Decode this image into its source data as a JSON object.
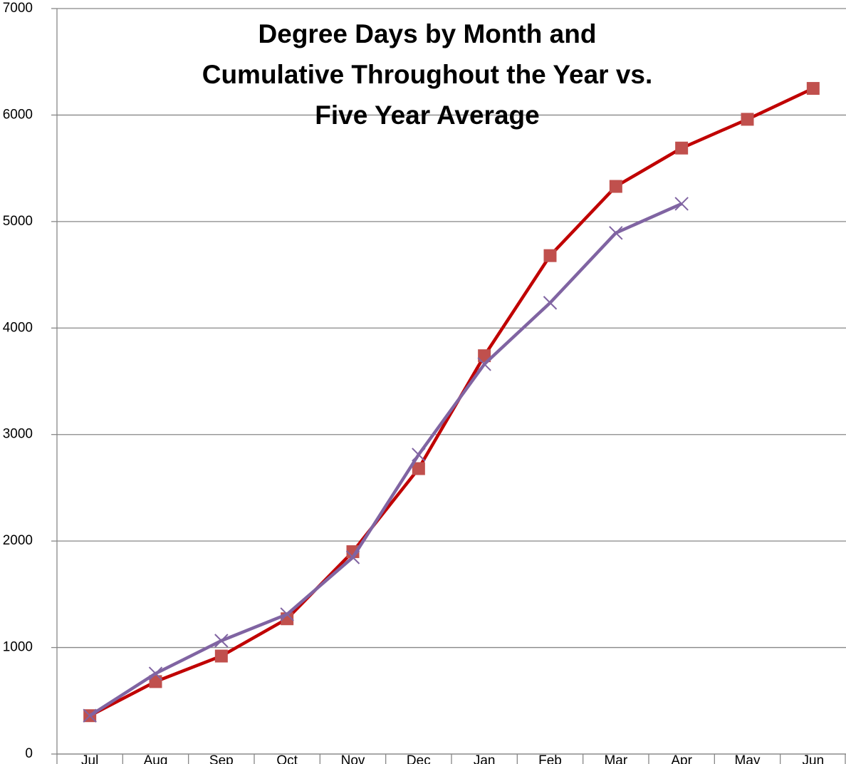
{
  "chart_data": {
    "type": "line",
    "title": [
      "Degree Days by Month and",
      "Cumulative Throughout the Year vs.",
      "Five Year Average"
    ],
    "categories": [
      "Jul",
      "Aug",
      "Sep",
      "Oct",
      "Nov",
      "Dec",
      "Jan",
      "Feb",
      "Mar",
      "Apr",
      "May",
      "Jun"
    ],
    "series": [
      {
        "color": "#c00000",
        "marker": "square",
        "marker_color": "#c0504d",
        "values": [
          360,
          680,
          920,
          1270,
          1900,
          2680,
          3740,
          4680,
          5330,
          5690,
          5960,
          6250
        ]
      },
      {
        "color": "#8064a2",
        "marker": "x",
        "marker_color": "#8064a2",
        "values": [
          360,
          756,
          1064,
          1312,
          1847,
          2811,
          3661,
          4237,
          4893,
          5167,
          null,
          null
        ]
      }
    ],
    "ylim": [
      0,
      7000
    ],
    "yticks": [
      0,
      1000,
      2000,
      3000,
      4000,
      5000,
      6000,
      7000
    ],
    "grid": true
  }
}
